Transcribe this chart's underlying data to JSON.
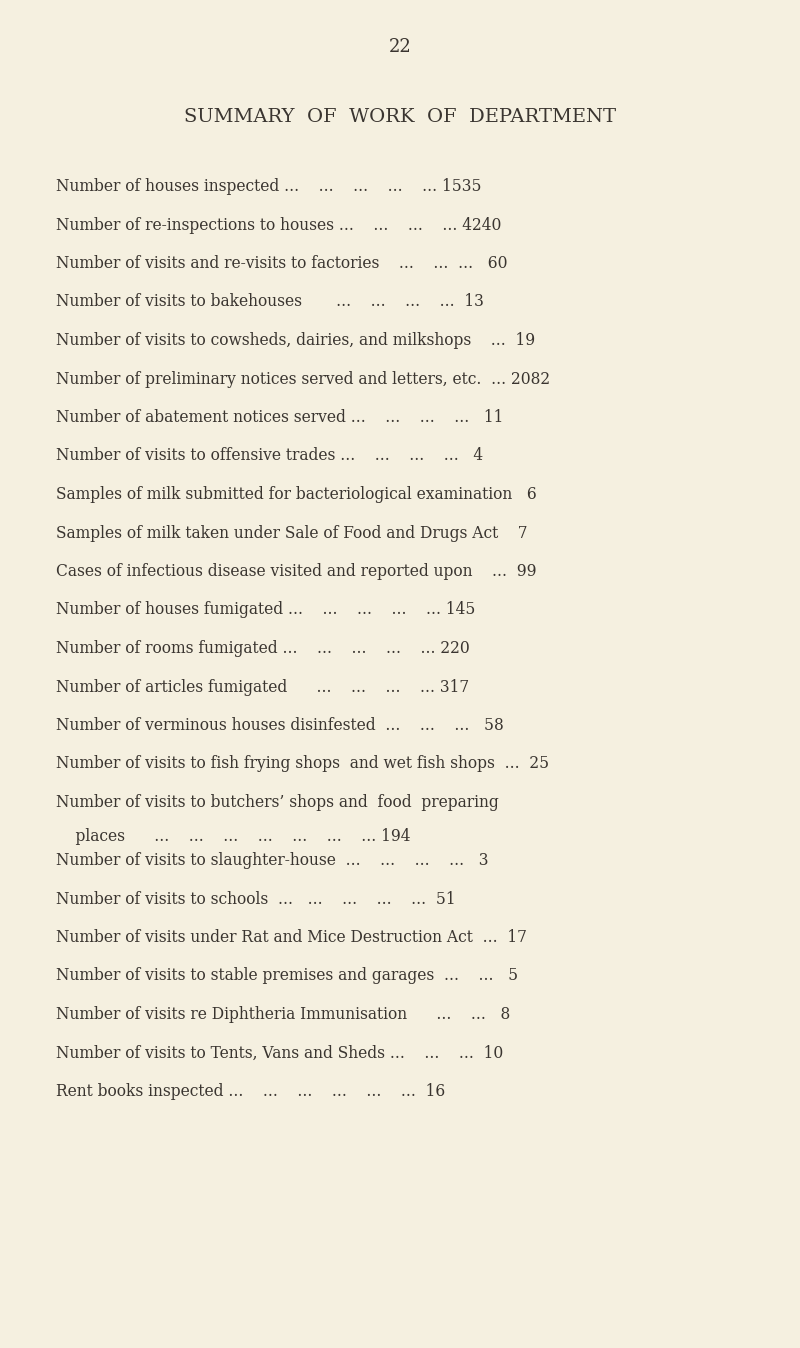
{
  "page_number": "22",
  "title": "SUMMARY  OF  WORK  OF  DEPARTMENT",
  "background_color": "#f5f0e0",
  "text_color": "#3a3530",
  "rows": [
    {
      "line1": "Number of houses inspected ...    ...    ...    ...    ... 1535",
      "line2": null
    },
    {
      "line1": "Number of re-inspections to houses ...    ...    ...    ... 4240",
      "line2": null
    },
    {
      "line1": "Number of visits and re-visits to factories    ...    ...  ...   60",
      "line2": null
    },
    {
      "line1": "Number of visits to bakehouses       ...    ...    ...    ...  13",
      "line2": null
    },
    {
      "line1": "Number of visits to cowsheds, dairies, and milkshops    ...  19",
      "line2": null
    },
    {
      "line1": "Number of preliminary notices served and letters, etc.  ... 2082",
      "line2": null
    },
    {
      "line1": "Number of abatement notices served ...    ...    ...    ...   11",
      "line2": null
    },
    {
      "line1": "Number of visits to offensive trades ...    ...    ...    ...   4",
      "line2": null
    },
    {
      "line1": "Samples of milk submitted for bacteriological examination   6",
      "line2": null
    },
    {
      "line1": "Samples of milk taken under Sale of Food and Drugs Act    7",
      "line2": null
    },
    {
      "line1": "Cases of infectious disease visited and reported upon    ...  99",
      "line2": null
    },
    {
      "line1": "Number of houses fumigated ...    ...    ...    ...    ... 145",
      "line2": null
    },
    {
      "line1": "Number of rooms fumigated ...    ...    ...    ...    ... 220",
      "line2": null
    },
    {
      "line1": "Number of articles fumigated      ...    ...    ...    ... 317",
      "line2": null
    },
    {
      "line1": "Number of verminous houses disinfested  ...    ...    ...   58",
      "line2": null
    },
    {
      "line1": "Number of visits to fish frying shops  and wet fish shops  ...  25",
      "line2": null
    },
    {
      "line1": "Number of visits to butchers’ shops and  food  preparing",
      "line2": "    places      ...    ...    ...    ...    ...    ...    ... 194"
    },
    {
      "line1": "Number of visits to slaughter-house  ...    ...    ...    ...   3",
      "line2": null
    },
    {
      "line1": "Number of visits to schools  ...   ...    ...    ...    ...  51",
      "line2": null
    },
    {
      "line1": "Number of visits under Rat and Mice Destruction Act  ...  17",
      "line2": null
    },
    {
      "line1": "Number of visits to stable premises and garages  ...    ...   5",
      "line2": null
    },
    {
      "line1": "Number of visits re Diphtheria Immunisation      ...    ...   8",
      "line2": null
    },
    {
      "line1": "Number of visits to Tents, Vans and Sheds ...    ...    ...  10",
      "line2": null
    },
    {
      "line1": "Rent books inspected ...    ...    ...    ...    ...    ...  16",
      "line2": null
    }
  ],
  "figsize": [
    8.0,
    13.48
  ],
  "dpi": 100
}
